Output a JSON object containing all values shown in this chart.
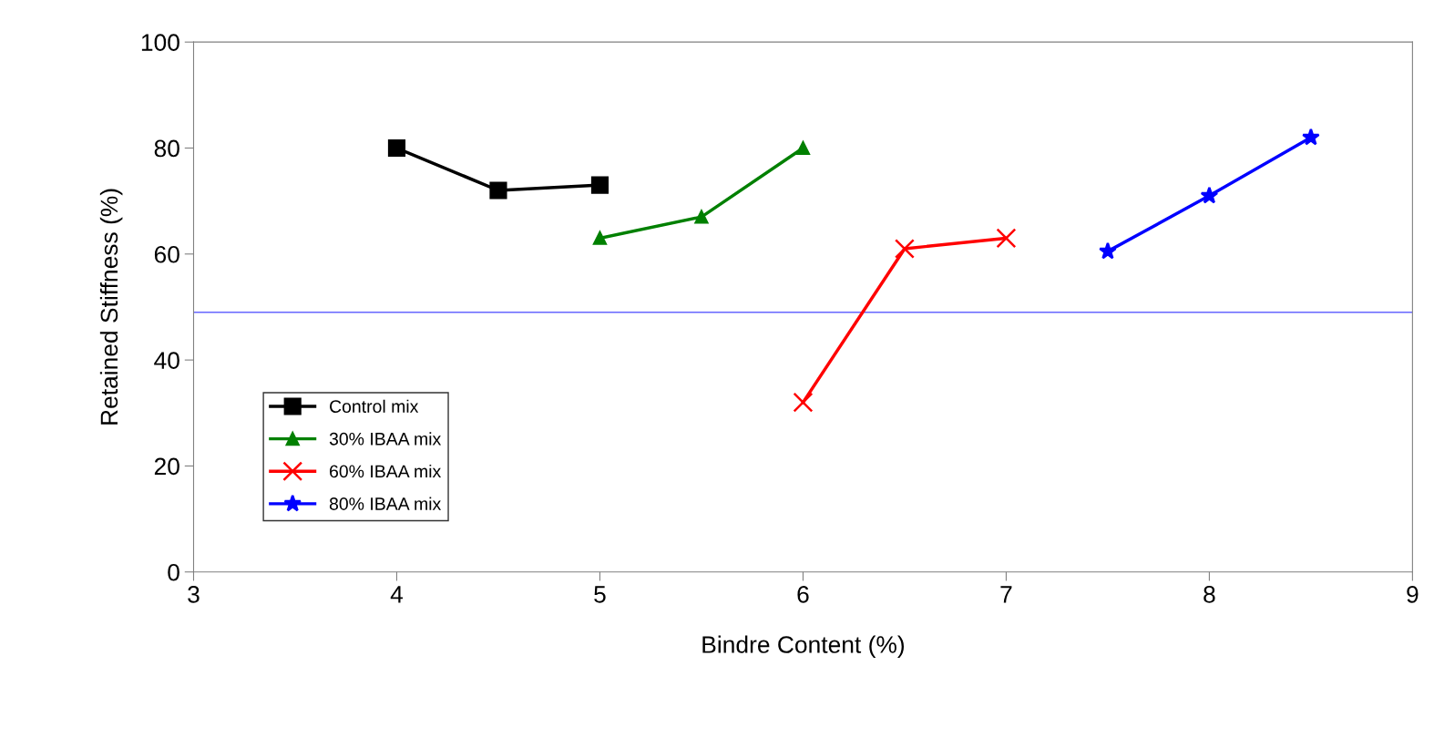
{
  "chart_data": {
    "type": "line",
    "xlabel": "Bindre Content (%)",
    "ylabel": "Retained Stiffness (%)",
    "xlim": [
      3,
      9
    ],
    "xticks": [
      3,
      4,
      5,
      6,
      7,
      8,
      9
    ],
    "ylim": [
      0,
      100
    ],
    "yticks": [
      0,
      20,
      40,
      60,
      80,
      100
    ],
    "grid": false,
    "legend": "bottom left",
    "series": [
      {
        "name": "Control mix",
        "color": "#000000",
        "marker": "square",
        "x": [
          4,
          4.5,
          5
        ],
        "values": [
          80,
          72,
          73
        ]
      },
      {
        "name": "30% IBAA mix",
        "color": "#008000",
        "marker": "triangle",
        "x": [
          5,
          5.5,
          6
        ],
        "values": [
          63,
          67,
          80
        ]
      },
      {
        "name": "60% IBAA mix",
        "color": "#ff0000",
        "marker": "cross",
        "x": [
          6,
          6.5,
          7
        ],
        "values": [
          32,
          61,
          63
        ]
      },
      {
        "name": "80% IBAA mix",
        "color": "#0000ff",
        "marker": "star",
        "x": [
          7.5,
          8,
          8.5
        ],
        "values": [
          60.5,
          71,
          82
        ]
      }
    ],
    "ref_lines": [
      {
        "axis": "y",
        "value": 49,
        "color": "#6666ff"
      }
    ]
  }
}
